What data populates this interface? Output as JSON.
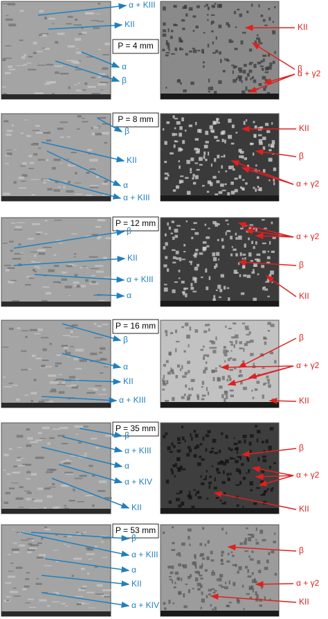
{
  "panels": [
    {
      "label": "P = 4 mm",
      "left": [
        "α + KIII",
        "KII",
        "α",
        "β"
      ],
      "right": [
        "KII",
        "β",
        "α + γ2"
      ]
    },
    {
      "label": "P = 8 mm",
      "left": [
        "β",
        "KII",
        "α",
        "α + KIII"
      ],
      "right": [
        "KII",
        "β",
        "α + γ2"
      ]
    },
    {
      "label": "P = 12 mm",
      "left": [
        "β",
        "KII",
        "α + KIII",
        "α"
      ],
      "right": [
        "α + γ2",
        "β",
        "KII"
      ]
    },
    {
      "label": "P = 16 mm",
      "left": [
        "β",
        "α",
        "KII",
        "α + KIII"
      ],
      "right": [
        "β",
        "α + γ2",
        "KII"
      ]
    },
    {
      "label": "P = 35 mm",
      "left": [
        "β",
        "α + KIII",
        "α",
        "α + KIV",
        "KII"
      ],
      "right": [
        "β",
        "α + γ2",
        "KII"
      ]
    },
    {
      "label": "P = 53 mm",
      "left": [
        "β",
        "α + KIII",
        "α",
        "KII",
        "α + KIV"
      ],
      "right": [
        "β",
        "α + γ2",
        "KII"
      ]
    }
  ]
}
